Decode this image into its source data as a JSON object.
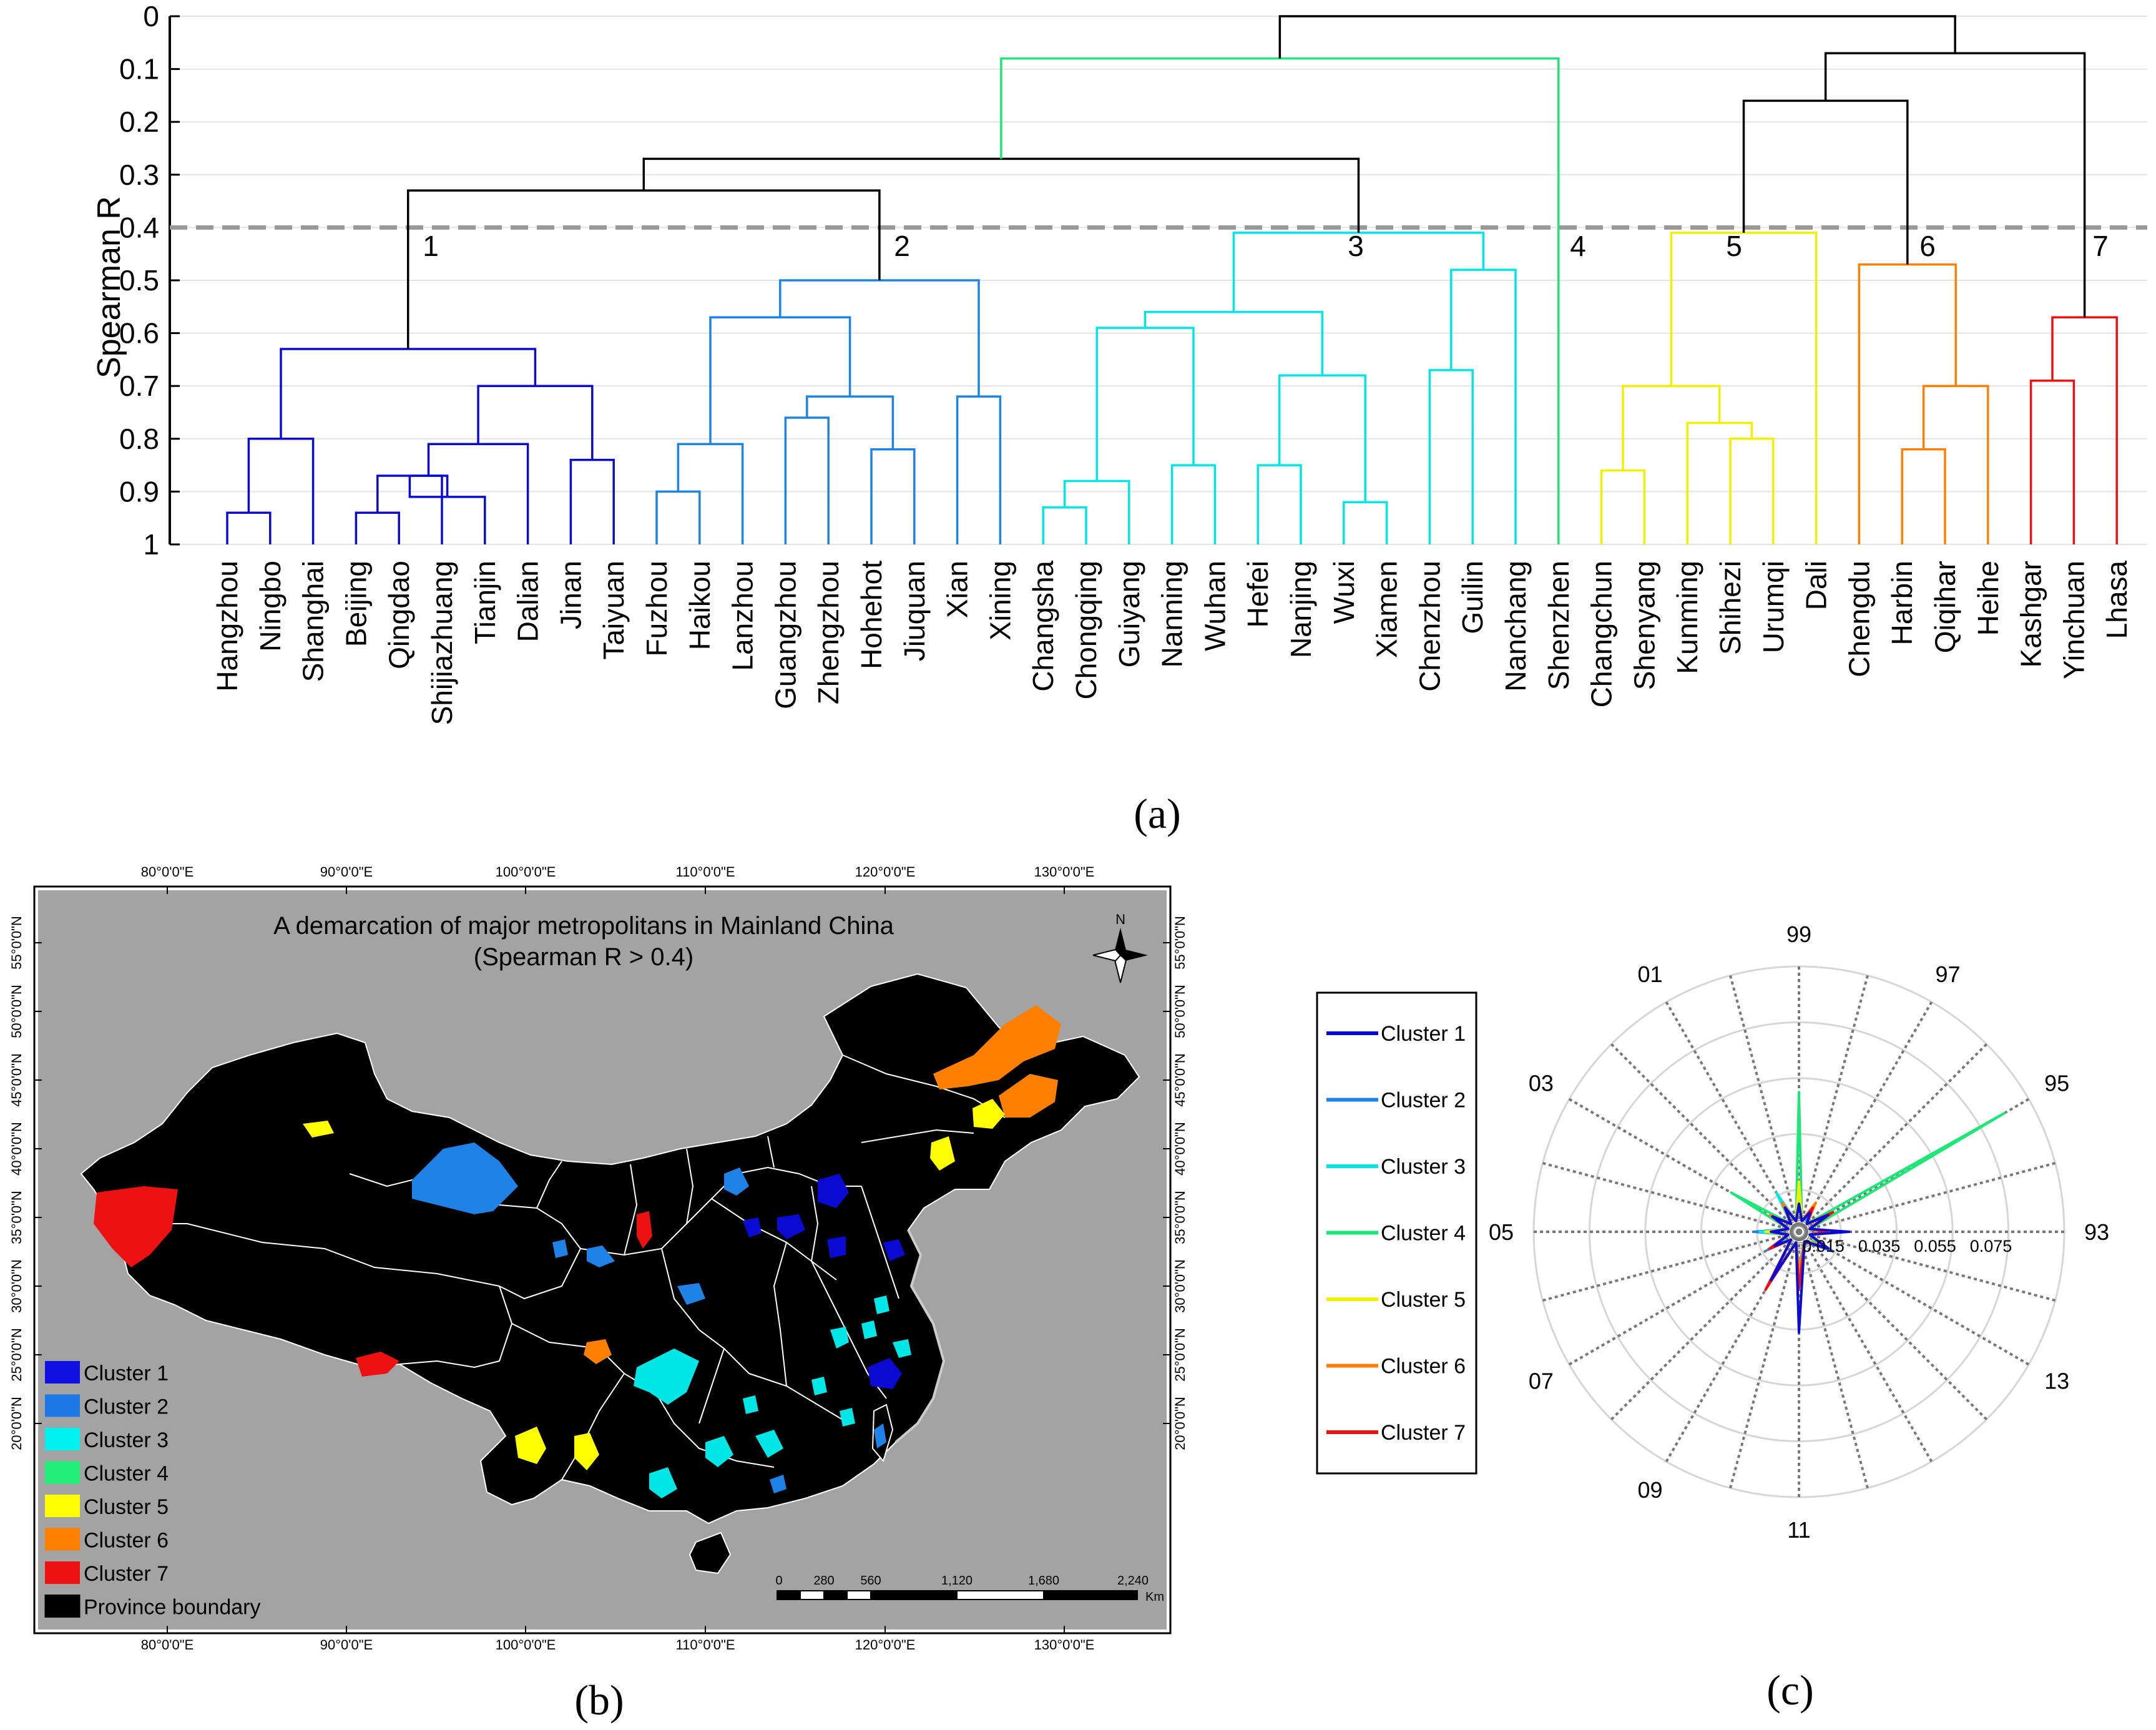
{
  "panel_a": {
    "label": "(a)",
    "ylabel": "Spearman R",
    "yticks": [
      "0",
      "0.1",
      "0.2",
      "0.3",
      "0.4",
      "0.5",
      "0.6",
      "0.7",
      "0.8",
      "0.9",
      "1"
    ],
    "threshold": 0.4,
    "cluster_labels": [
      "1",
      "2",
      "3",
      "4",
      "5",
      "6",
      "7"
    ],
    "cities": [
      "Hangzhou",
      "Ningbo",
      "Shanghai",
      "Beijing",
      "Qingdao",
      "Shijiazhuang",
      "Tianjin",
      "Dalian",
      "Jinan",
      "Taiyuan",
      "Fuzhou",
      "Haikou",
      "Lanzhou",
      "Guangzhou",
      "Zhengzhou",
      "Hohehot",
      "Jiuquan",
      "Xian",
      "Xining",
      "Changsha",
      "Chongqing",
      "Guiyang",
      "Nanning",
      "Wuhan",
      "Hefei",
      "Nanjing",
      "Wuxi",
      "Xiamen",
      "Chenzhou",
      "Guilin",
      "Nanchang",
      "Shenzhen",
      "Changchun",
      "Shenyang",
      "Kunming",
      "Shihezi",
      "Urumqi",
      "Dali",
      "Chengdu",
      "Harbin",
      "Qiqihar",
      "Heihe",
      "Kashgar",
      "Yinchuan",
      "Lhasa"
    ]
  },
  "chart_data": [
    {
      "type": "dendrogram",
      "ylabel": "Spearman R",
      "ylim": [
        0,
        1
      ],
      "threshold": 0.4,
      "leaves": [
        "Hangzhou",
        "Ningbo",
        "Shanghai",
        "Beijing",
        "Qingdao",
        "Shijiazhuang",
        "Tianjin",
        "Dalian",
        "Jinan",
        "Taiyuan",
        "Fuzhou",
        "Haikou",
        "Lanzhou",
        "Guangzhou",
        "Zhengzhou",
        "Hohehot",
        "Jiuquan",
        "Xian",
        "Xining",
        "Changsha",
        "Chongqing",
        "Guiyang",
        "Nanning",
        "Wuhan",
        "Hefei",
        "Nanjing",
        "Wuxi",
        "Xiamen",
        "Chenzhou",
        "Guilin",
        "Nanchang",
        "Shenzhen",
        "Changchun",
        "Shenyang",
        "Kunming",
        "Shihezi",
        "Urumqi",
        "Dali",
        "Chengdu",
        "Harbin",
        "Qiqihar",
        "Heihe",
        "Kashgar",
        "Yinchuan",
        "Lhasa"
      ],
      "merges": [
        {
          "a": "L0",
          "b": "L1",
          "h": 0.94,
          "c": 1
        },
        {
          "a": "N0",
          "b": "L2",
          "h": 0.8,
          "c": 1
        },
        {
          "a": "L3",
          "b": "L4",
          "h": 0.94,
          "c": 1
        },
        {
          "a": "N2",
          "b": "L5",
          "h": 0.87,
          "c": 1
        },
        {
          "a": "L6",
          "b": "N3",
          "h": 0.91,
          "c": 1
        },
        {
          "a": "N3",
          "b": "N4",
          "h": 0.87,
          "c": 1
        },
        {
          "a": "N5",
          "b": "L7",
          "h": 0.81,
          "c": 1
        },
        {
          "a": "L8",
          "b": "L9",
          "h": 0.84,
          "c": 1
        },
        {
          "a": "N6",
          "b": "N7",
          "h": 0.7,
          "c": 1
        },
        {
          "a": "N1",
          "b": "N8",
          "h": 0.63,
          "c": 1
        },
        {
          "a": "L10",
          "b": "L11",
          "h": 0.9,
          "c": 2
        },
        {
          "a": "N10",
          "b": "L12",
          "h": 0.81,
          "c": 2
        },
        {
          "a": "L13",
          "b": "L14",
          "h": 0.76,
          "c": 2
        },
        {
          "a": "L15",
          "b": "L16",
          "h": 0.82,
          "c": 2
        },
        {
          "a": "N12",
          "b": "N13",
          "h": 0.72,
          "c": 2
        },
        {
          "a": "L17",
          "b": "L18",
          "h": 0.72,
          "c": 2
        },
        {
          "a": "N11",
          "b": "N14",
          "h": 0.57,
          "c": 2
        },
        {
          "a": "N16",
          "b": "N15",
          "h": 0.5,
          "c": 2
        },
        {
          "a": "L19",
          "b": "L20",
          "h": 0.93,
          "c": 3
        },
        {
          "a": "N18",
          "b": "L21",
          "h": 0.88,
          "c": 3
        },
        {
          "a": "L22",
          "b": "L23",
          "h": 0.85,
          "c": 3
        },
        {
          "a": "N19",
          "b": "N20",
          "h": 0.59,
          "c": 3
        },
        {
          "a": "L24",
          "b": "L25",
          "h": 0.85,
          "c": 3
        },
        {
          "a": "L26",
          "b": "L27",
          "h": 0.92,
          "c": 3
        },
        {
          "a": "N22",
          "b": "N23",
          "h": 0.68,
          "c": 3
        },
        {
          "a": "N21",
          "b": "N24",
          "h": 0.56,
          "c": 3
        },
        {
          "a": "L28",
          "b": "L29",
          "h": 0.67,
          "c": 3
        },
        {
          "a": "N26",
          "b": "L30",
          "h": 0.48,
          "c": 3
        },
        {
          "a": "N25",
          "b": "N27",
          "h": 0.41,
          "c": 3
        },
        {
          "a": "N9",
          "b": "N17",
          "h": 0.33,
          "c": 0
        },
        {
          "a": "N29",
          "b": "N28",
          "h": 0.27,
          "c": 0
        },
        {
          "a": "N30",
          "b": "L31",
          "h": 0.08,
          "c": 4
        },
        {
          "a": "L32",
          "b": "L33",
          "h": 0.86,
          "c": 5
        },
        {
          "a": "L35",
          "b": "L36",
          "h": 0.8,
          "c": 5
        },
        {
          "a": "L34",
          "b": "N33",
          "h": 0.77,
          "c": 5
        },
        {
          "a": "N32",
          "b": "N34",
          "h": 0.7,
          "c": 5
        },
        {
          "a": "N35",
          "b": "L37",
          "h": 0.41,
          "c": 5
        },
        {
          "a": "L39",
          "b": "L40",
          "h": 0.82,
          "c": 6
        },
        {
          "a": "N37",
          "b": "L41",
          "h": 0.7,
          "c": 6
        },
        {
          "a": "L38",
          "b": "N38",
          "h": 0.47,
          "c": 6
        },
        {
          "a": "N36",
          "b": "N39",
          "h": 0.16,
          "c": 0
        },
        {
          "a": "L42",
          "b": "L43",
          "h": 0.69,
          "c": 7
        },
        {
          "a": "N41",
          "b": "L44",
          "h": 0.57,
          "c": 7
        },
        {
          "a": "N40",
          "b": "N42",
          "h": 0.07,
          "c": 0
        },
        {
          "a": "N31",
          "b": "N43",
          "h": 0.0,
          "c": 0
        }
      ]
    },
    {
      "type": "radar",
      "categories": [
        "93",
        "95",
        "97",
        "99",
        "01",
        "03",
        "05",
        "07",
        "09",
        "11",
        "13"
      ],
      "radial_ticks": [
        0.015,
        0.035,
        0.055,
        0.075
      ],
      "series": [
        {
          "name": "Cluster 1",
          "values": [
            0.018,
            0.012,
            0.008,
            0.01,
            0.01,
            0.011,
            0.01,
            0.01,
            0.02,
            0.036,
            0.012
          ]
        },
        {
          "name": "Cluster 2",
          "values": [
            0.012,
            0.012,
            0.006,
            0.015,
            0.011,
            0.012,
            0.016,
            0.013,
            0.022,
            0.015,
            0.014
          ]
        },
        {
          "name": "Cluster 3",
          "values": [
            0.012,
            0.013,
            0.008,
            0.017,
            0.016,
            0.012,
            0.014,
            0.01,
            0.015,
            0.012,
            0.011
          ]
        },
        {
          "name": "Cluster 4",
          "values": [
            0.009,
            0.085,
            0.008,
            0.05,
            0.012,
            0.028,
            0.008,
            0.008,
            0.016,
            0.015,
            0.008
          ]
        },
        {
          "name": "Cluster 5",
          "values": [
            0.01,
            0.012,
            0.008,
            0.018,
            0.01,
            0.012,
            0.012,
            0.01,
            0.018,
            0.016,
            0.01
          ]
        },
        {
          "name": "Cluster 6",
          "values": [
            0.012,
            0.01,
            0.012,
            0.01,
            0.012,
            0.012,
            0.01,
            0.012,
            0.016,
            0.014,
            0.01
          ]
        },
        {
          "name": "Cluster 7",
          "values": [
            0.01,
            0.014,
            0.01,
            0.01,
            0.01,
            0.01,
            0.01,
            0.012,
            0.024,
            0.02,
            0.012
          ]
        }
      ]
    }
  ],
  "panel_b": {
    "label": "(b)",
    "title_line1": "A demarcation of major metropolitans in Mainland China",
    "title_line2": "(Spearman R > 0.4)",
    "lon_labels": [
      "80°0'0\"E",
      "90°0'0\"E",
      "100°0'0\"E",
      "110°0'0\"E",
      "120°0'0\"E",
      "130°0'0\"E"
    ],
    "lat_labels": [
      "55°0'0\"N",
      "50°0'0\"N",
      "45°0'0\"N",
      "40°0'0\"N",
      "35°0'0\"N",
      "30°0'0\"N",
      "25°0'0\"N",
      "20°0'0\"N"
    ],
    "north": "N",
    "scale_labels": [
      "0",
      "280",
      "560",
      "1,120",
      "1,680",
      "2,240"
    ],
    "scale_unit": "Km",
    "legend": [
      {
        "label": "Cluster 1",
        "color": "#1010e0"
      },
      {
        "label": "Cluster 2",
        "color": "#1e78e6"
      },
      {
        "label": "Cluster 3",
        "color": "#00f0f0"
      },
      {
        "label": "Cluster 4",
        "color": "#22ee77"
      },
      {
        "label": "Cluster 5",
        "color": "#ffff00"
      },
      {
        "label": "Cluster 6",
        "color": "#ff7f00"
      },
      {
        "label": "Cluster 7",
        "color": "#ee1111"
      },
      {
        "label": "Province boundary",
        "color": "#000000"
      }
    ]
  },
  "panel_c": {
    "label": "(c)",
    "legend": [
      "Cluster 1",
      "Cluster 2",
      "Cluster 3",
      "Cluster 4",
      "Cluster 5",
      "Cluster 6",
      "Cluster 7"
    ],
    "angle_labels": [
      "93",
      "95",
      "97",
      "99",
      "01",
      "03",
      "05",
      "07",
      "09",
      "11",
      "13"
    ],
    "radius_labels": [
      "0.015",
      "0.035",
      "0.055",
      "0.075"
    ]
  },
  "colors": {
    "c0": "#000000",
    "c1": "#0a0ad2",
    "c2": "#1e82e6",
    "c3": "#00e6e6",
    "c4": "#1ee678",
    "c5": "#f0f000",
    "c6": "#ff8000",
    "c7": "#ee1111",
    "threshold": "#999999"
  }
}
